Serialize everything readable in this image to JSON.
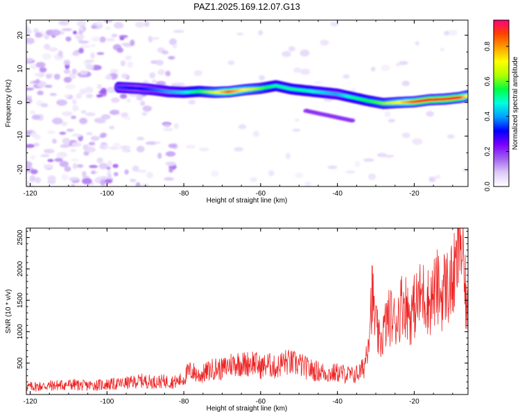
{
  "figure": {
    "title": "PAZ1.2025.169.12.07.G13"
  },
  "chart_data": [
    {
      "type": "heatmap",
      "title": "PAZ1.2025.169.12.07.G13",
      "xlabel": "Height of straight line (km)",
      "ylabel": "Frequency (Hz)",
      "xlim": [
        -121,
        -6
      ],
      "ylim": [
        -25,
        24.5
      ],
      "x_ticks": [
        -120,
        -100,
        -80,
        -60,
        -40,
        -20
      ],
      "y_ticks": [
        -20,
        -10,
        0,
        10,
        20
      ],
      "grid": false,
      "ridge": {
        "x": [
          -97,
          -92,
          -88,
          -84,
          -80,
          -76,
          -72,
          -68,
          -64,
          -60,
          -56,
          -52,
          -48,
          -44,
          -40,
          -36,
          -32,
          -28,
          -24,
          -20,
          -16,
          -12,
          -8,
          -6
        ],
        "frequency": [
          4.5,
          4.2,
          3.8,
          3.2,
          3.0,
          3.3,
          3.0,
          3.2,
          3.8,
          4.2,
          5.0,
          4.0,
          3.5,
          3.0,
          2.5,
          1.5,
          0.5,
          -0.3,
          0.0,
          0.2,
          0.8,
          1.0,
          1.5,
          2.0
        ],
        "amplitude": [
          0.35,
          0.3,
          0.35,
          0.4,
          0.45,
          0.55,
          0.65,
          0.85,
          0.7,
          0.6,
          0.5,
          0.5,
          0.5,
          0.45,
          0.4,
          0.5,
          0.55,
          0.6,
          0.7,
          0.85,
          0.9,
          0.88,
          0.9,
          0.7
        ]
      },
      "colorbar": {
        "label": "Normalized spectral amplitude",
        "range": [
          0.0,
          0.95
        ],
        "ticks": [
          "0.0",
          "0.2",
          "0.4",
          "0.6",
          "0.8"
        ],
        "tick_values": [
          0.0,
          0.2,
          0.4,
          0.6,
          0.8
        ],
        "colormap": [
          "#ffffff",
          "#dcc8f8",
          "#a060f0",
          "#7a00ff",
          "#0000ff",
          "#00a0ff",
          "#00ffe0",
          "#00ff40",
          "#b0ff00",
          "#ffff00",
          "#ffa000",
          "#ff4000",
          "#ff0080"
        ]
      }
    },
    {
      "type": "line",
      "xlabel": "Height of straight line (km)",
      "ylabel": "SNR (10 * v/v)",
      "xlim": [
        -121,
        -6
      ],
      "ylim": [
        0,
        2650
      ],
      "x_ticks": [
        -120,
        -100,
        -80,
        -60,
        -40,
        -20
      ],
      "y_ticks": [
        500,
        1000,
        1500,
        2000,
        2500
      ],
      "grid": false,
      "color": "#ee2222",
      "series": [
        {
          "x": [
            -121,
            -118,
            -115,
            -112,
            -109,
            -106,
            -103,
            -100,
            -97,
            -94,
            -91,
            -88,
            -85,
            -82,
            -80,
            -79,
            -78,
            -76,
            -74,
            -72,
            -70,
            -68,
            -66,
            -64,
            -62,
            -60,
            -58,
            -56,
            -54,
            -52,
            -50,
            -48,
            -46,
            -44,
            -42,
            -40,
            -38,
            -36,
            -34,
            -33,
            -32,
            -31,
            -30,
            -29,
            -28,
            -27,
            -26,
            -25,
            -24,
            -23,
            -22,
            -21,
            -20,
            -19,
            -18,
            -17,
            -16,
            -15,
            -14,
            -13,
            -12,
            -11,
            -10,
            -9,
            -8.5,
            -8,
            -7.5,
            -7,
            -6.5,
            -6
          ],
          "values": [
            120,
            130,
            140,
            150,
            160,
            140,
            150,
            160,
            170,
            190,
            220,
            200,
            210,
            200,
            250,
            350,
            380,
            300,
            360,
            420,
            400,
            480,
            500,
            480,
            520,
            430,
            480,
            420,
            520,
            500,
            480,
            420,
            380,
            360,
            330,
            350,
            330,
            300,
            360,
            450,
            900,
            1600,
            1100,
            800,
            1000,
            1200,
            1250,
            1150,
            1300,
            1500,
            1400,
            1250,
            1400,
            1500,
            1600,
            1550,
            1450,
            1600,
            1700,
            1550,
            1750,
            1700,
            1800,
            2000,
            2400,
            2600,
            2200,
            1800,
            1500,
            1200
          ]
        }
      ]
    }
  ]
}
